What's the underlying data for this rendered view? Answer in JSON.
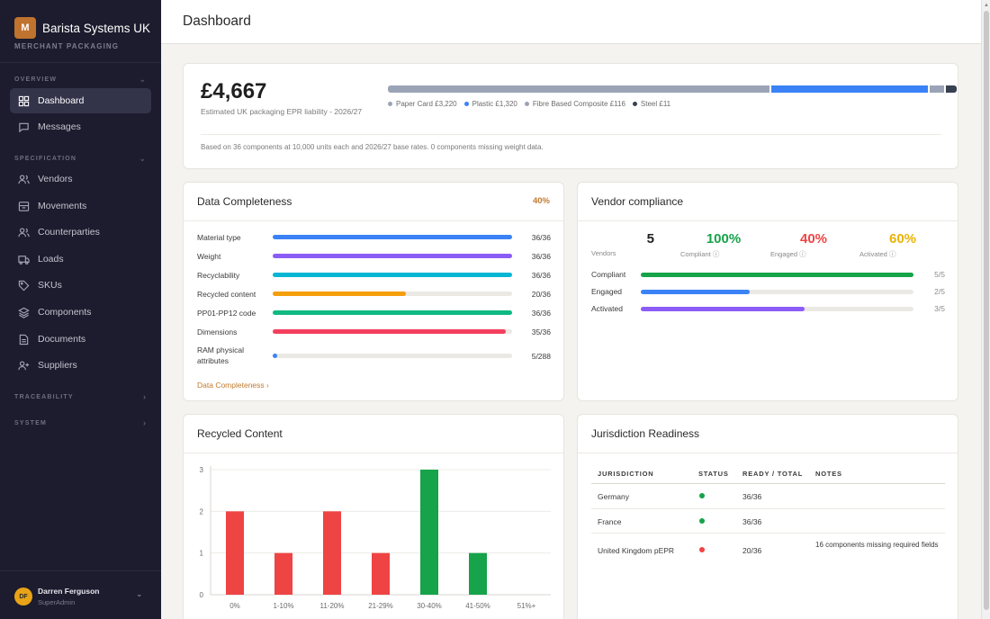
{
  "sidebar": {
    "brand_initial": "M",
    "brand_name": "Barista Systems UK",
    "brand_sub": "MERCHANT PACKAGING",
    "sections": [
      "OVERVIEW",
      "SPECIFICATION",
      "TRACEABILITY",
      "SYSTEM"
    ],
    "items": [
      {
        "label": "Dashboard",
        "icon": "grid-icon"
      },
      {
        "label": "Messages",
        "icon": "message-icon"
      },
      {
        "label": "Vendors",
        "icon": "users-icon"
      },
      {
        "label": "Movements",
        "icon": "box-icon"
      },
      {
        "label": "Counterparties",
        "icon": "users-icon"
      },
      {
        "label": "Loads",
        "icon": "truck-icon"
      },
      {
        "label": "SKUs",
        "icon": "tag-icon"
      },
      {
        "label": "Components",
        "icon": "layers-icon"
      },
      {
        "label": "Documents",
        "icon": "document-icon"
      },
      {
        "label": "Suppliers",
        "icon": "user-plus-icon"
      }
    ],
    "user": {
      "initials": "DF",
      "name": "Darren Ferguson",
      "role": "SuperAdmin"
    }
  },
  "header": {
    "title": "Dashboard"
  },
  "summary": {
    "value": "£4,667",
    "label": "Estimated UK packaging EPR liability - 2026/27",
    "segments": [
      {
        "label": "Paper Card £3,220",
        "amount": 3220,
        "color": "#9aa4b6"
      },
      {
        "label": "Plastic £1,320",
        "amount": 1320,
        "color": "#3b82f6"
      },
      {
        "label": "Fibre Based Composite £116",
        "amount": 116,
        "color": "#9aa4b6"
      },
      {
        "label": "Steel £11",
        "amount": 11,
        "color": "#374151"
      }
    ],
    "note": "Based on 36 components at 10,000 units each and 2026/27 base rates. 0 components missing weight data."
  },
  "completeness": {
    "title": "Data Completeness",
    "percent": "40%",
    "rows": [
      {
        "label": "Material type",
        "count": "36/36",
        "fraction": 1.0,
        "color": "#3b82f6"
      },
      {
        "label": "Weight",
        "count": "36/36",
        "fraction": 1.0,
        "color": "#8b5cf6"
      },
      {
        "label": "Recyclability",
        "count": "36/36",
        "fraction": 1.0,
        "color": "#06b6d4"
      },
      {
        "label": "Recycled content",
        "count": "20/36",
        "fraction": 0.556,
        "color": "#f59e0b"
      },
      {
        "label": "PP01-PP12 code",
        "count": "36/36",
        "fraction": 1.0,
        "color": "#10b981"
      },
      {
        "label": "Dimensions",
        "count": "35/36",
        "fraction": 0.972,
        "color": "#f43f5e"
      },
      {
        "label": "RAM physical attributes",
        "count": "5/288",
        "fraction": 0.017,
        "color": "#3b82f6"
      }
    ],
    "link": "Data Completeness"
  },
  "vendor": {
    "title": "Vendor compliance",
    "stats": [
      {
        "value": "5",
        "label": "Vendors",
        "color": "#1f1f1f"
      },
      {
        "value": "100%",
        "label": "Compliant",
        "color": "#16a34a"
      },
      {
        "value": "40%",
        "label": "Engaged",
        "color": "#ef4444"
      },
      {
        "value": "60%",
        "label": "Activated",
        "color": "#eab308"
      }
    ],
    "rows": [
      {
        "label": "Compliant",
        "count": "5/5",
        "fraction": 1.0,
        "color": "#16a34a"
      },
      {
        "label": "Engaged",
        "count": "2/5",
        "fraction": 0.4,
        "color": "#3b82f6"
      },
      {
        "label": "Activated",
        "count": "3/5",
        "fraction": 0.6,
        "color": "#8b5cf6"
      }
    ]
  },
  "recycled": {
    "title": "Recycled Content"
  },
  "chart_data": {
    "type": "bar",
    "categories": [
      "0%",
      "1-10%",
      "11-20%",
      "21-29%",
      "30-40%",
      "41-50%",
      "51%+"
    ],
    "values": [
      2,
      1,
      2,
      1,
      3,
      1,
      0
    ],
    "colors": [
      "#ef4444",
      "#ef4444",
      "#ef4444",
      "#ef4444",
      "#16a34a",
      "#16a34a",
      "#16a34a"
    ],
    "yticks": [
      "0",
      "1",
      "2",
      "3"
    ],
    "ylim": [
      0,
      3
    ],
    "grid": true
  },
  "jurisdiction": {
    "title": "Jurisdiction Readiness",
    "columns": [
      "JURISDICTION",
      "STATUS",
      "READY / TOTAL",
      "NOTES"
    ],
    "rows": [
      {
        "name": "Germany",
        "status_color": "#16a34a",
        "ready": "36/36",
        "notes": ""
      },
      {
        "name": "France",
        "status_color": "#16a34a",
        "ready": "36/36",
        "notes": ""
      },
      {
        "name": "United Kingdom pEPR",
        "status_color": "#ef4444",
        "ready": "20/36",
        "notes": "16 components missing required fields"
      }
    ]
  }
}
